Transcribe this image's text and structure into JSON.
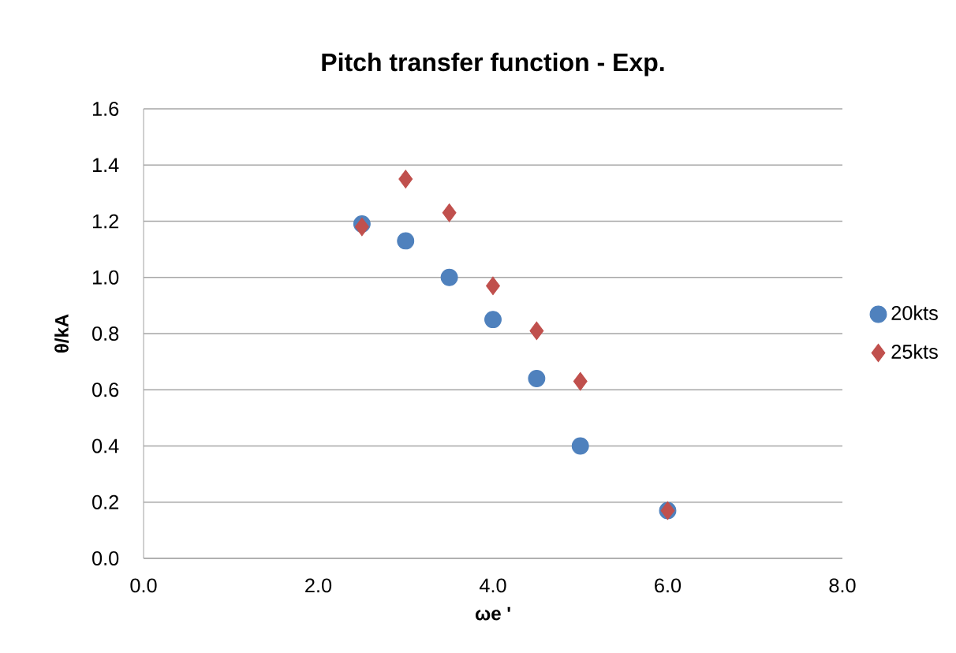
{
  "chart_data": {
    "type": "scatter",
    "title": "Pitch transfer function - Exp.",
    "xlabel": "ωe '",
    "ylabel": "θ/kA",
    "xlim": [
      0,
      8
    ],
    "xticks": [
      {
        "value": 0,
        "label": "0.0"
      },
      {
        "value": 2,
        "label": "2.0"
      },
      {
        "value": 4,
        "label": "4.0"
      },
      {
        "value": 6,
        "label": "6.0"
      },
      {
        "value": 8,
        "label": "8.0"
      }
    ],
    "ylim": [
      0,
      1.6
    ],
    "yticks": [
      {
        "value": 0,
        "label": "0.0"
      },
      {
        "value": 0.2,
        "label": "0.2"
      },
      {
        "value": 0.4,
        "label": "0.4"
      },
      {
        "value": 0.6,
        "label": "0.6"
      },
      {
        "value": 0.8,
        "label": "0.8"
      },
      {
        "value": 1.0,
        "label": "1.0"
      },
      {
        "value": 1.2,
        "label": "1.2"
      },
      {
        "value": 1.4,
        "label": "1.4"
      },
      {
        "value": 1.6,
        "label": "1.6"
      }
    ],
    "grid": "y",
    "legend": "right",
    "series": [
      {
        "name": "20kts",
        "color": "#4f81bd",
        "marker": "circle",
        "x": [
          2.5,
          3,
          3.5,
          4,
          4.5,
          5,
          6
        ],
        "values": [
          1.19,
          1.13,
          1.0,
          0.85,
          0.64,
          0.4,
          0.17
        ]
      },
      {
        "name": "25kts",
        "color": "#c0504d",
        "marker": "diamond",
        "x": [
          2.5,
          3,
          3.5,
          4,
          4.5,
          5,
          6
        ],
        "values": [
          1.18,
          1.35,
          1.23,
          0.97,
          0.81,
          0.63,
          0.17
        ]
      }
    ]
  }
}
